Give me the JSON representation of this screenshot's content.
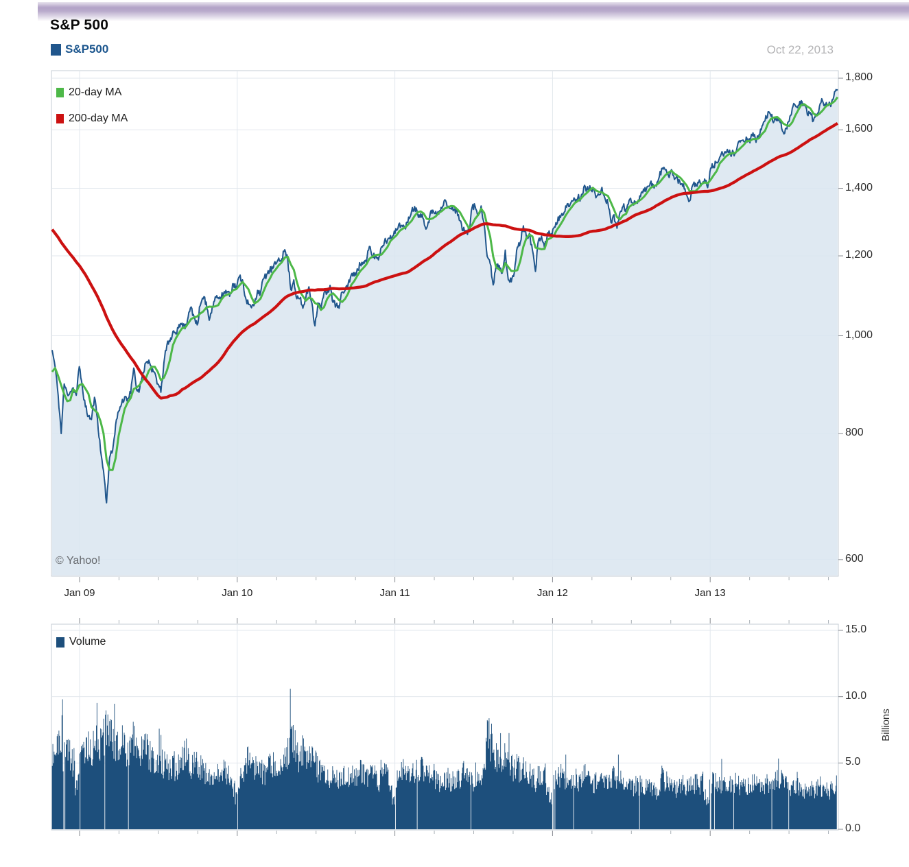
{
  "header": {
    "title": "S&P 500",
    "series_label": "S&P500",
    "date_label": "Oct 22, 2013"
  },
  "price_legend": [
    {
      "label": "20-day MA",
      "color": "#4db848"
    },
    {
      "label": "200-day MA",
      "color": "#cc1111"
    }
  ],
  "volume_legend": {
    "label": "Volume"
  },
  "watermark": "© Yahoo!",
  "colors": {
    "grid": "#e2e7ed",
    "pane_border": "#c6ccd4",
    "tick": "#818competitors"
  },
  "colors_fix": "see colors2",
  "colors2": {
    "grid": "#e2e7ed",
    "pane_border": "#c6ccd4",
    "tick": "#85898f",
    "tick_minor": "#a9b0b6",
    "axis_text": "#2e2e2e"
  },
  "render_hints": {
    "seed": 11,
    "price_jitter": 0.008,
    "bars_per_week": 5,
    "volume_noise": 0.45
  },
  "chart_data": [
    {
      "type": "line",
      "title": "S&P 500",
      "yscale": "log",
      "y_ref": 1800,
      "ylim": [
        557,
        1833
      ],
      "yticks": [
        600,
        800,
        1000,
        1200,
        1400,
        1600,
        1800
      ],
      "ytick_labels": [
        "600",
        "800",
        "1,000",
        "1,200",
        "1,400",
        "1,600",
        "1,800"
      ],
      "xticks": [
        2009,
        2010,
        2011,
        2012,
        2013
      ],
      "xtick_labels": [
        "Jan 09",
        "Jan 10",
        "Jan 11",
        "Jan 12",
        "Jan 13"
      ],
      "x_start_year": 2008.826,
      "x_step_years": 0.0191615,
      "grid": true,
      "legend_position": "top-left",
      "pre_values": [
        1331,
        1395,
        1331,
        1349,
        1353,
        1330,
        1293,
        1288,
        1329,
        1316,
        1370,
        1332,
        1390,
        1398,
        1413,
        1388,
        1425,
        1376,
        1400,
        1361,
        1360,
        1318,
        1278,
        1263,
        1239,
        1260,
        1258,
        1260,
        1296,
        1298,
        1292,
        1283,
        1242,
        1252,
        1255,
        1213,
        1099,
        899,
        940,
        877
      ],
      "series": [
        {
          "name": "S&P500",
          "color": "#20568c",
          "fill": "#d9e5f0",
          "values": [
            968,
            931,
            873,
            800,
            896,
            876,
            880,
            888,
            873,
            932,
            890,
            850,
            832,
            826,
            869,
            827,
            770,
            735,
            683,
            757,
            769,
            816,
            842,
            857,
            870,
            866,
            877,
            929,
            883,
            887,
            919,
            940,
            946,
            921,
            919,
            896,
            879,
            940,
            979,
            987,
            1010,
            1004,
            1026,
            1029,
            1016,
            1043,
            1068,
            1044,
            1025,
            1071,
            1088,
            1080,
            1036,
            1069,
            1093,
            1091,
            1091,
            1106,
            1106,
            1102,
            1126,
            1115,
            1145,
            1136,
            1092,
            1074,
            1066,
            1075,
            1109,
            1104,
            1139,
            1150,
            1160,
            1166,
            1178,
            1194,
            1192,
            1217,
            1187,
            1111,
            1136,
            1088,
            1089,
            1065,
            1092,
            1118,
            1077,
            1023,
            1078,
            1065,
            1103,
            1102,
            1122,
            1079,
            1072,
            1065,
            1105,
            1110,
            1126,
            1149,
            1146,
            1165,
            1176,
            1183,
            1183,
            1226,
            1199,
            1200,
            1189,
            1225,
            1240,
            1244,
            1257,
            1258,
            1272,
            1293,
            1283,
            1276,
            1311,
            1329,
            1343,
            1320,
            1321,
            1304,
            1279,
            1314,
            1332,
            1328,
            1320,
            1337,
            1364,
            1340,
            1338,
            1333,
            1331,
            1300,
            1271,
            1272,
            1268,
            1340,
            1344,
            1316,
            1345,
            1292,
            1199,
            1179,
            1123,
            1177,
            1174,
            1154,
            1216,
            1136,
            1131,
            1155,
            1224,
            1238,
            1285,
            1253,
            1264,
            1216,
            1158,
            1244,
            1255,
            1220,
            1265,
            1258,
            1278,
            1289,
            1315,
            1316,
            1345,
            1343,
            1361,
            1366,
            1370,
            1371,
            1404,
            1397,
            1408,
            1398,
            1370,
            1379,
            1403,
            1369,
            1353,
            1295,
            1318,
            1278,
            1326,
            1343,
            1335,
            1362,
            1355,
            1357,
            1363,
            1386,
            1391,
            1406,
            1418,
            1411,
            1407,
            1438,
            1466,
            1460,
            1441,
            1461,
            1429,
            1433,
            1412,
            1414,
            1380,
            1360,
            1409,
            1416,
            1418,
            1413,
            1430,
            1402,
            1466,
            1472,
            1486,
            1503,
            1513,
            1518,
            1520,
            1515,
            1518,
            1551,
            1561,
            1557,
            1569,
            1553,
            1589,
            1555,
            1582,
            1614,
            1634,
            1667,
            1650,
            1631,
            1643,
            1627,
            1592,
            1606,
            1632,
            1680,
            1692,
            1692,
            1710,
            1691,
            1656,
            1664,
            1633,
            1655,
            1688,
            1710,
            1692,
            1691,
            1703,
            1745,
            1755
          ]
        },
        {
          "name": "20-day MA",
          "color": "#4db848",
          "derived": "moving_average",
          "window_weeks": 4
        },
        {
          "name": "200-day MA",
          "color": "#cc1111",
          "derived": "moving_average",
          "window_weeks": 40
        }
      ]
    },
    {
      "type": "bar",
      "name": "Volume",
      "ylabel": "Billions",
      "color": "#1d4f7c",
      "ylim": [
        0,
        15.5
      ],
      "yticks": [
        0,
        5,
        10,
        15
      ],
      "ytick_labels": [
        "0.0",
        "5.0",
        "10.0",
        "15.0"
      ],
      "unit": "billions_avg_daily_per_week",
      "values": [
        6.1,
        6.6,
        6.4,
        7.2,
        5.4,
        5.9,
        5.6,
        5.0,
        3.2,
        5.0,
        5.7,
        5.9,
        6.0,
        5.8,
        6.3,
        6.0,
        6.4,
        6.9,
        7.4,
        7.1,
        6.8,
        6.3,
        6.1,
        6.4,
        6.0,
        5.9,
        6.2,
        6.7,
        6.0,
        5.6,
        5.8,
        6.1,
        5.6,
        5.3,
        4.9,
        4.7,
        5.2,
        4.9,
        4.7,
        4.6,
        4.9,
        4.5,
        4.7,
        5.2,
        5.6,
        5.0,
        4.8,
        5.2,
        4.9,
        4.7,
        4.5,
        4.3,
        4.1,
        4.0,
        3.9,
        4.2,
        4.4,
        4.3,
        4.1,
        3.9,
        3.0,
        2.4,
        3.9,
        4.4,
        4.9,
        5.3,
        4.9,
        4.5,
        4.3,
        4.4,
        4.2,
        4.5,
        4.7,
        4.9,
        4.4,
        4.2,
        4.5,
        5.2,
        5.7,
        7.6,
        6.4,
        6.0,
        5.5,
        5.8,
        5.3,
        5.6,
        5.1,
        5.3,
        4.5,
        4.3,
        4.1,
        3.9,
        3.7,
        4.0,
        3.8,
        3.6,
        3.9,
        4.1,
        3.8,
        4.0,
        4.2,
        4.0,
        4.3,
        4.1,
        3.9,
        4.4,
        4.2,
        4.0,
        3.5,
        4.3,
        4.1,
        4.0,
        2.9,
        2.2,
        3.9,
        4.3,
        4.6,
        4.4,
        4.2,
        4.1,
        3.9,
        4.3,
        4.6,
        4.4,
        4.7,
        4.2,
        4.0,
        3.8,
        3.6,
        3.9,
        3.7,
        3.8,
        3.6,
        3.7,
        3.9,
        3.8,
        4.3,
        4.6,
        4.1,
        3.6,
        3.4,
        3.7,
        3.9,
        4.6,
        7.0,
        6.5,
        5.9,
        5.4,
        5.0,
        4.8,
        5.3,
        5.0,
        4.7,
        4.5,
        4.8,
        4.3,
        4.6,
        4.4,
        4.1,
        3.9,
        3.5,
        4.0,
        3.8,
        4.1,
        2.7,
        2.1,
        3.5,
        3.8,
        4.0,
        3.9,
        3.7,
        3.9,
        3.6,
        3.8,
        3.6,
        3.7,
        4.0,
        3.6,
        3.8,
        3.4,
        3.6,
        3.3,
        3.5,
        3.7,
        3.4,
        3.8,
        4.1,
        3.6,
        4.4,
        3.7,
        3.5,
        3.8,
        3.1,
        3.3,
        3.2,
        3.4,
        3.1,
        3.0,
        2.9,
        3.1,
        2.8,
        3.2,
        3.9,
        3.6,
        3.3,
        3.1,
        3.3,
        3.0,
        3.2,
        3.4,
        3.1,
        3.3,
        3.6,
        3.4,
        3.2,
        3.5,
        2.5,
        2.0,
        3.4,
        3.6,
        3.5,
        3.3,
        3.5,
        3.4,
        3.6,
        3.3,
        3.5,
        3.3,
        3.2,
        3.1,
        3.3,
        3.1,
        3.4,
        3.6,
        3.3,
        3.5,
        3.2,
        3.4,
        3.1,
        3.5,
        3.7,
        3.9,
        3.6,
        3.3,
        2.9,
        3.1,
        3.0,
        3.2,
        2.9,
        2.8,
        2.7,
        3.0,
        2.8,
        3.1,
        3.3,
        3.0,
        2.9,
        2.8,
        3.1,
        3.3,
        3.5
      ],
      "spikes": [
        {
          "week": 3,
          "day": 4,
          "value": 9.8
        },
        {
          "week": 79,
          "day": 1,
          "value": 10.6
        }
      ]
    }
  ]
}
